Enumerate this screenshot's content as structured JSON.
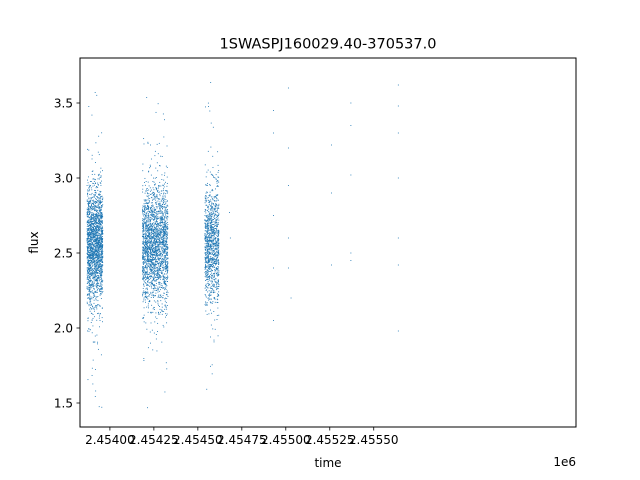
{
  "chart_data": {
    "type": "scatter",
    "title": "1SWASPJ160029.40-370537.0",
    "xlabel": "time",
    "ylabel": "flux",
    "x_offset_label": "1e6",
    "x_unit_scale": 1000000,
    "xlim": [
      2453830,
      2456650
    ],
    "ylim": [
      1.34,
      3.8
    ],
    "grid": false,
    "legend": "none",
    "marker_color": "#1f77b4",
    "x_ticks": [
      2454000,
      2454250,
      2454500,
      2454750,
      2455000,
      2455250,
      2455500
    ],
    "x_tick_labels": [
      "2.45400",
      "2.45425",
      "2.45450",
      "2.45475",
      "2.45500",
      "2.45525",
      "2.45550"
    ],
    "y_ticks": [
      1.5,
      2.0,
      2.5,
      3.0,
      3.5
    ],
    "y_tick_labels": [
      "1.5",
      "2.0",
      "2.5",
      "3.0",
      "3.5"
    ],
    "observing_seasons": [
      {
        "x_range": [
          2453870,
          2453960
        ],
        "y_center": 2.55,
        "y_spread": 0.19,
        "y_range": [
          1.44,
          3.68
        ],
        "approx_points": 2000
      },
      {
        "x_range": [
          2454185,
          2454330
        ],
        "y_center": 2.55,
        "y_spread": 0.19,
        "y_range": [
          1.44,
          3.66
        ],
        "approx_points": 2200
      },
      {
        "x_range": [
          2454540,
          2454620
        ],
        "y_center": 2.55,
        "y_spread": 0.19,
        "y_range": [
          1.47,
          3.67
        ],
        "approx_points": 1100
      }
    ],
    "sparse_points": [
      [
        2454680,
        2.77
      ],
      [
        2454685,
        2.6
      ],
      [
        2454930,
        3.45
      ],
      [
        2454930,
        3.3
      ],
      [
        2454930,
        2.4
      ],
      [
        2454930,
        2.05
      ],
      [
        2454930,
        2.75
      ],
      [
        2455015,
        3.6
      ],
      [
        2455015,
        3.2
      ],
      [
        2455015,
        2.95
      ],
      [
        2455015,
        2.6
      ],
      [
        2455015,
        2.4
      ],
      [
        2455030,
        2.2
      ],
      [
        2455260,
        3.22
      ],
      [
        2455260,
        2.9
      ],
      [
        2455260,
        2.42
      ],
      [
        2455370,
        3.5
      ],
      [
        2455370,
        3.35
      ],
      [
        2455370,
        3.02
      ],
      [
        2455370,
        2.5
      ],
      [
        2455370,
        2.45
      ],
      [
        2455640,
        3.62
      ],
      [
        2455640,
        3.48
      ],
      [
        2455640,
        3.3
      ],
      [
        2455640,
        3.0
      ],
      [
        2455640,
        2.6
      ],
      [
        2455640,
        2.42
      ],
      [
        2455640,
        1.98
      ]
    ]
  }
}
